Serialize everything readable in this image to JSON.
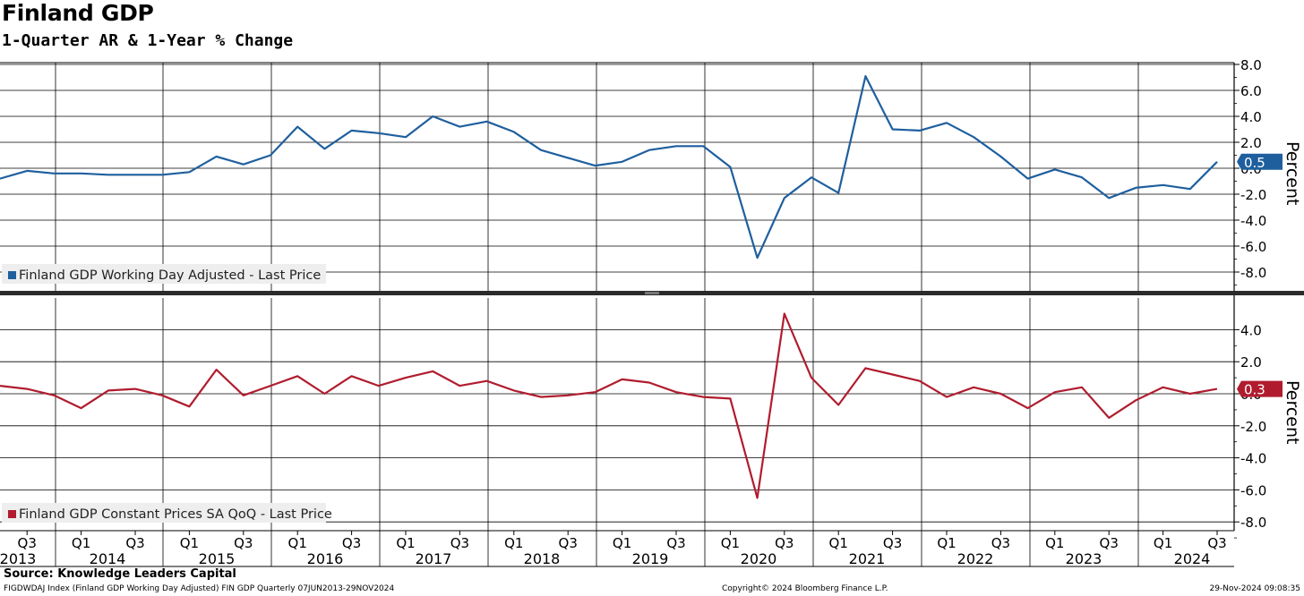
{
  "header": {
    "title": "Finland GDP",
    "subtitle": "1-Quarter AR & 1-Year % Change"
  },
  "footer": {
    "source": "Source: Knowledge Leaders Capital",
    "ticker": "FIGDWDAJ Index (Finland GDP Working Day Adjusted) FIN GDP  Quarterly 07JUN2013-29NOV2024",
    "copyright": "Copyright© 2024 Bloomberg Finance L.P.",
    "timestamp": "29-Nov-2024 09:08:35"
  },
  "colors": {
    "top_series": "#1f5f9e",
    "bottom_series": "#b01c2e",
    "grid": "#000000",
    "legend_bg": "#eeeeee"
  },
  "chart_data": [
    {
      "type": "line",
      "panel": "top",
      "ylabel": "Percent",
      "ylim": [
        -9.5,
        8.5
      ],
      "yticks": [
        8.0,
        6.0,
        4.0,
        2.0,
        0.0,
        -2.0,
        -4.0,
        -6.0,
        -8.0
      ],
      "ytick_labels": [
        "8.0",
        "6.0",
        "4.0",
        "2.0",
        "0.0",
        "-2.0",
        "-4.0",
        "-6.0",
        "-8.0"
      ],
      "grid": true,
      "legend_position": "bottom-left",
      "last_value_label": "0.5",
      "series": [
        {
          "name": "Finland GDP Working Day Adjusted - Last Price",
          "color": "#1f5f9e",
          "x": [
            "2013Q2",
            "2013Q3",
            "2013Q4",
            "2014Q1",
            "2014Q2",
            "2014Q3",
            "2014Q4",
            "2015Q1",
            "2015Q2",
            "2015Q3",
            "2015Q4",
            "2016Q1",
            "2016Q2",
            "2016Q3",
            "2016Q4",
            "2017Q1",
            "2017Q2",
            "2017Q3",
            "2017Q4",
            "2018Q1",
            "2018Q2",
            "2018Q3",
            "2018Q4",
            "2019Q1",
            "2019Q2",
            "2019Q3",
            "2019Q4",
            "2020Q1",
            "2020Q2",
            "2020Q3",
            "2020Q4",
            "2021Q1",
            "2021Q2",
            "2021Q3",
            "2021Q4",
            "2022Q1",
            "2022Q2",
            "2022Q3",
            "2022Q4",
            "2023Q1",
            "2023Q2",
            "2023Q3",
            "2023Q4",
            "2024Q1",
            "2024Q2",
            "2024Q3"
          ],
          "values": [
            -0.8,
            -0.2,
            -0.4,
            -0.4,
            -0.5,
            -0.5,
            -0.5,
            -0.3,
            0.9,
            0.3,
            1.0,
            3.2,
            1.5,
            2.9,
            2.7,
            2.4,
            4.0,
            3.2,
            3.6,
            2.8,
            1.4,
            0.8,
            0.2,
            0.5,
            1.4,
            1.7,
            1.7,
            0.1,
            -6.9,
            -2.3,
            -0.7,
            -1.9,
            7.1,
            3.0,
            2.9,
            3.5,
            2.4,
            0.9,
            -0.8,
            -0.1,
            -0.7,
            -2.3,
            -1.5,
            -1.3,
            -1.6,
            0.5
          ]
        }
      ]
    },
    {
      "type": "line",
      "panel": "bottom",
      "ylabel": "Percent",
      "ylim": [
        -8.5,
        5.8
      ],
      "yticks": [
        4.0,
        2.0,
        0.0,
        -2.0,
        -4.0,
        -6.0,
        -8.0
      ],
      "ytick_labels": [
        "4.0",
        "2.0",
        "0.0",
        "-2.0",
        "-4.0",
        "-6.0",
        "-8.0"
      ],
      "grid": true,
      "legend_position": "bottom-left",
      "last_value_label": "0.3",
      "x_ticks_quarter": [
        "Q3",
        "Q1",
        "Q3",
        "Q1",
        "Q3",
        "Q1",
        "Q3",
        "Q1",
        "Q3",
        "Q1",
        "Q3",
        "Q1",
        "Q3",
        "Q1",
        "Q3",
        "Q1",
        "Q3",
        "Q1",
        "Q3",
        "Q1",
        "Q3",
        "Q1",
        "Q3"
      ],
      "x_ticks_year": [
        "2013",
        "2014",
        "2015",
        "2016",
        "2017",
        "2018",
        "2019",
        "2020",
        "2021",
        "2022",
        "2023",
        "2024"
      ],
      "series": [
        {
          "name": "Finland GDP Constant Prices SA QoQ - Last Price",
          "color": "#b01c2e",
          "x": [
            "2013Q2",
            "2013Q3",
            "2013Q4",
            "2014Q1",
            "2014Q2",
            "2014Q3",
            "2014Q4",
            "2015Q1",
            "2015Q2",
            "2015Q3",
            "2015Q4",
            "2016Q1",
            "2016Q2",
            "2016Q3",
            "2016Q4",
            "2017Q1",
            "2017Q2",
            "2017Q3",
            "2017Q4",
            "2018Q1",
            "2018Q2",
            "2018Q3",
            "2018Q4",
            "2019Q1",
            "2019Q2",
            "2019Q3",
            "2019Q4",
            "2020Q1",
            "2020Q2",
            "2020Q3",
            "2020Q4",
            "2021Q1",
            "2021Q2",
            "2021Q3",
            "2021Q4",
            "2022Q1",
            "2022Q2",
            "2022Q3",
            "2022Q4",
            "2023Q1",
            "2023Q2",
            "2023Q3",
            "2023Q4",
            "2024Q1",
            "2024Q2",
            "2024Q3"
          ],
          "values": [
            0.5,
            0.3,
            -0.1,
            -0.9,
            0.2,
            0.3,
            -0.1,
            -0.8,
            1.5,
            -0.1,
            0.5,
            1.1,
            0.0,
            1.1,
            0.5,
            1.0,
            1.4,
            0.5,
            0.8,
            0.2,
            -0.2,
            -0.1,
            0.1,
            0.9,
            0.7,
            0.1,
            -0.2,
            -0.3,
            -6.5,
            5.0,
            1.0,
            -0.7,
            1.6,
            1.2,
            0.8,
            -0.2,
            0.4,
            0.0,
            -0.9,
            0.1,
            0.4,
            -1.5,
            -0.4,
            0.4,
            0.0,
            0.3
          ]
        }
      ]
    }
  ]
}
